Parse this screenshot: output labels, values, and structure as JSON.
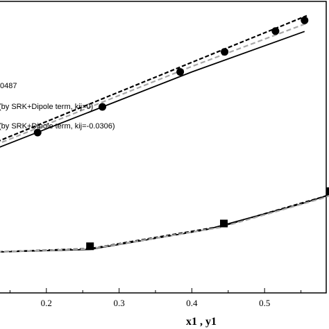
{
  "chart_data": {
    "type": "line",
    "xlabel": "x1 , y1",
    "x_ticks": [
      "0.2",
      "0.3",
      "0.4",
      "0.5"
    ],
    "xlim": [
      0.1,
      0.6
    ],
    "ylim": [
      0,
      1
    ],
    "legend_fragments": [
      "0487",
      "(by SRK+Dipole term, kij=0)",
      "(by SRK+Dipole term, kij=-0.0306)"
    ],
    "upper_markers": {
      "marker": "circle",
      "points": [
        [
          0.188,
          0.55
        ],
        [
          0.277,
          0.638
        ],
        [
          0.384,
          0.758
        ],
        [
          0.445,
          0.827
        ],
        [
          0.515,
          0.898
        ],
        [
          0.555,
          0.935
        ]
      ]
    },
    "lower_markers": {
      "marker": "square",
      "points": [
        [
          0.26,
          0.16
        ],
        [
          0.444,
          0.238
        ],
        [
          0.59,
          0.349
        ]
      ]
    },
    "series": [
      {
        "style": "solid-black",
        "segments": [
          [
            [
              0.1,
              0.465
            ],
            [
              0.4,
              0.758
            ],
            [
              0.555,
              0.897
            ]
          ],
          [
            [
              0.1,
              0.138
            ],
            [
              0.26,
              0.149
            ],
            [
              0.42,
              0.217
            ],
            [
              0.55,
              0.305
            ],
            [
              0.6,
              0.345
            ]
          ]
        ]
      },
      {
        "style": "dashed-black",
        "segments": [
          [
            [
              0.1,
              0.486
            ],
            [
              0.4,
              0.791
            ],
            [
              0.558,
              0.951
            ]
          ],
          [
            [
              0.1,
              0.138
            ],
            [
              0.26,
              0.152
            ],
            [
              0.44,
              0.228
            ],
            [
              0.58,
              0.329
            ],
            [
              0.6,
              0.347
            ]
          ]
        ]
      },
      {
        "style": "dashed-gray",
        "segments": [
          [
            [
              0.1,
              0.478
            ],
            [
              0.4,
              0.777
            ],
            [
              0.558,
              0.925
            ]
          ],
          [
            [
              0.1,
              0.138
            ],
            [
              0.26,
              0.151
            ],
            [
              0.44,
              0.225
            ],
            [
              0.58,
              0.325
            ],
            [
              0.6,
              0.344
            ]
          ]
        ]
      }
    ]
  }
}
